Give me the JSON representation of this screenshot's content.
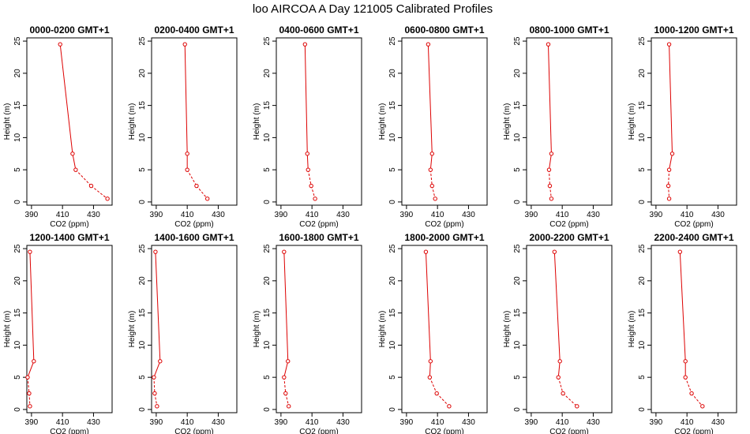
{
  "chart_data": {
    "title": "loo AIRCOA A  Day 121005  Calibrated Profiles",
    "type": "line",
    "xlabel": "CO2 (ppm)",
    "ylabel": "Height (m)",
    "xlim": [
      387,
      442
    ],
    "ylim": [
      -0.5,
      25.5
    ],
    "xticks": [
      390,
      410,
      430
    ],
    "yticks": [
      0,
      5,
      10,
      15,
      20,
      25
    ],
    "series_color": "#dd0000",
    "grid": false,
    "heights": [
      24.5,
      7.5,
      5,
      2.5,
      0.5
    ],
    "panels": [
      {
        "title": "0000-0200 GMT+1",
        "co2": [
          408.5,
          416.5,
          418.5,
          428.5,
          439.0
        ]
      },
      {
        "title": "0200-0400 GMT+1",
        "co2": [
          408.5,
          410.0,
          410.0,
          416.0,
          423.0
        ]
      },
      {
        "title": "0400-0600 GMT+1",
        "co2": [
          405.5,
          407.0,
          407.5,
          409.5,
          412.0
        ]
      },
      {
        "title": "0600-0800 GMT+1",
        "co2": [
          404.0,
          406.5,
          405.5,
          406.5,
          408.5
        ]
      },
      {
        "title": "0800-1000 GMT+1",
        "co2": [
          401.0,
          403.0,
          401.5,
          402.0,
          403.0
        ]
      },
      {
        "title": "1000-1200 GMT+1",
        "co2": [
          398.5,
          400.5,
          398.5,
          398.0,
          398.5
        ]
      },
      {
        "title": "1200-1400 GMT+1",
        "co2": [
          389.0,
          391.5,
          387.5,
          388.5,
          389.0
        ]
      },
      {
        "title": "1400-1600 GMT+1",
        "co2": [
          389.5,
          392.5,
          388.5,
          389.0,
          390.5
        ]
      },
      {
        "title": "1600-1800 GMT+1",
        "co2": [
          392.0,
          394.5,
          392.0,
          393.0,
          395.0
        ]
      },
      {
        "title": "1800-2000 GMT+1",
        "co2": [
          402.5,
          405.5,
          405.0,
          409.5,
          417.5
        ]
      },
      {
        "title": "2000-2200 GMT+1",
        "co2": [
          405.0,
          408.5,
          407.5,
          410.5,
          419.5
        ]
      },
      {
        "title": "2200-2400 GMT+1",
        "co2": [
          405.5,
          409.0,
          409.0,
          413.0,
          420.0
        ]
      }
    ]
  }
}
